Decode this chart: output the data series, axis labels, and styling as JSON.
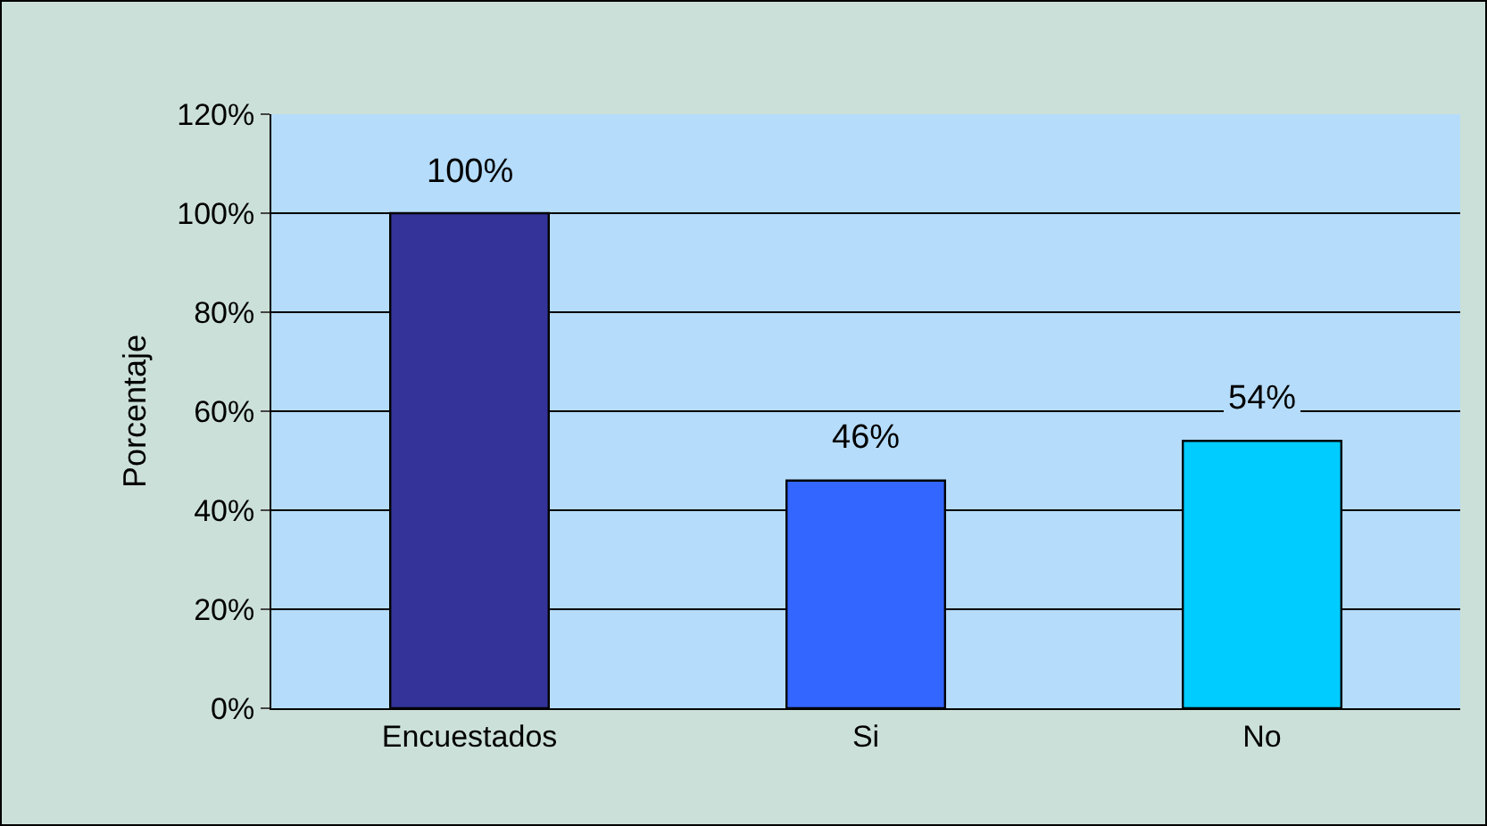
{
  "chart_data": {
    "type": "bar",
    "ylabel": "Porcentaje",
    "categories": [
      "Encuestados",
      "Si",
      "No"
    ],
    "values": [
      100,
      46,
      54
    ],
    "colors": [
      "#333399",
      "#3366ff",
      "#00ccff"
    ],
    "value_labels": [
      "100%",
      "46%",
      "54%"
    ],
    "ylim": [
      0,
      120
    ],
    "yticks": [
      {
        "value": 0,
        "label": "0%"
      },
      {
        "value": 20,
        "label": "20%"
      },
      {
        "value": 40,
        "label": "40%"
      },
      {
        "value": 60,
        "label": "60%"
      },
      {
        "value": 80,
        "label": "80%"
      },
      {
        "value": 100,
        "label": "100%"
      },
      {
        "value": 120,
        "label": "120%"
      }
    ],
    "grid": "y"
  }
}
